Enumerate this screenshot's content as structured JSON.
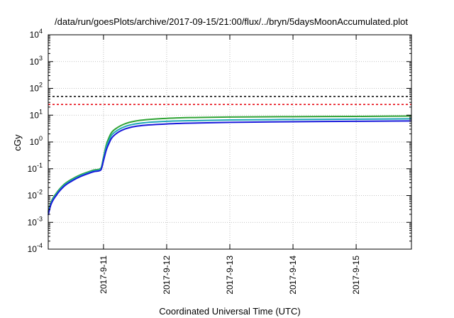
{
  "chart_data": {
    "type": "line",
    "title": "/data/run/goesPlots/archive/2017-09-15/21:00/flux/../bryn/5daysMoonAccumulated.plot",
    "xlabel": "Coordinated Universal Time (UTC)",
    "ylabel": "cGy",
    "xlim": [
      "2017-09-10T03:00",
      "2017-09-15T21:00"
    ],
    "ylim": [
      0.0001,
      10000
    ],
    "yscale": "log",
    "grid": true,
    "x_ticks": [
      "2017-9-11",
      "2017-9-12",
      "2017-9-13",
      "2017-9-14",
      "2017-9-15"
    ],
    "y_ticks": [
      {
        "base": "10",
        "exp": "-4"
      },
      {
        "base": "10",
        "exp": "-3"
      },
      {
        "base": "10",
        "exp": "-2"
      },
      {
        "base": "10",
        "exp": "-1"
      },
      {
        "base": "10",
        "exp": "0"
      },
      {
        "base": "10",
        "exp": "1"
      },
      {
        "base": "10",
        "exp": "2"
      },
      {
        "base": "10",
        "exp": "3"
      },
      {
        "base": "10",
        "exp": "4"
      }
    ],
    "thresholds": [
      {
        "value": 50,
        "color": "#000000",
        "style": "dashed"
      },
      {
        "value": 25,
        "color": "#e8111b",
        "style": "dashed"
      }
    ],
    "series": [
      {
        "color": "#2fa334",
        "x": [
          "2017-09-10T03:00",
          "2017-09-10T04:00",
          "2017-09-10T06:00",
          "2017-09-10T09:00",
          "2017-09-10T12:00",
          "2017-09-10T15:00",
          "2017-09-10T18:00",
          "2017-09-10T21:00",
          "2017-09-10T23:00",
          "2017-09-11T00:00",
          "2017-09-11T01:00",
          "2017-09-11T02:00",
          "2017-09-11T03:00",
          "2017-09-11T05:00",
          "2017-09-11T08:00",
          "2017-09-11T12:00",
          "2017-09-12T00:00",
          "2017-09-12T12:00",
          "2017-09-13T00:00",
          "2017-09-14T00:00",
          "2017-09-15T00:00",
          "2017-09-15T21:00"
        ],
        "y": [
          0.0025,
          0.0055,
          0.012,
          0.026,
          0.041,
          0.058,
          0.075,
          0.092,
          0.105,
          0.27,
          0.75,
          1.4,
          2.2,
          3.3,
          4.7,
          6.0,
          7.6,
          8.2,
          8.5,
          8.8,
          9.0,
          9.3
        ]
      },
      {
        "color": "#1fa8b6",
        "x": [
          "2017-09-10T03:00",
          "2017-09-10T04:00",
          "2017-09-10T06:00",
          "2017-09-10T09:00",
          "2017-09-10T12:00",
          "2017-09-10T15:00",
          "2017-09-10T18:00",
          "2017-09-10T21:00",
          "2017-09-10T23:00",
          "2017-09-11T00:00",
          "2017-09-11T01:00",
          "2017-09-11T02:00",
          "2017-09-11T03:00",
          "2017-09-11T05:00",
          "2017-09-11T08:00",
          "2017-09-11T12:00",
          "2017-09-12T00:00",
          "2017-09-12T12:00",
          "2017-09-13T00:00",
          "2017-09-14T00:00",
          "2017-09-15T00:00",
          "2017-09-15T21:00"
        ],
        "y": [
          0.0022,
          0.005,
          0.011,
          0.024,
          0.038,
          0.054,
          0.07,
          0.086,
          0.098,
          0.24,
          0.62,
          1.1,
          1.75,
          2.6,
          3.7,
          4.7,
          5.9,
          6.3,
          6.6,
          6.9,
          7.1,
          7.3
        ]
      },
      {
        "color": "#1a1adb",
        "x": [
          "2017-09-10T03:00",
          "2017-09-10T04:00",
          "2017-09-10T06:00",
          "2017-09-10T09:00",
          "2017-09-10T12:00",
          "2017-09-10T15:00",
          "2017-09-10T18:00",
          "2017-09-10T21:00",
          "2017-09-10T23:00",
          "2017-09-11T00:00",
          "2017-09-11T01:00",
          "2017-09-11T02:00",
          "2017-09-11T03:00",
          "2017-09-11T05:00",
          "2017-09-11T08:00",
          "2017-09-11T12:00",
          "2017-09-12T00:00",
          "2017-09-12T12:00",
          "2017-09-13T00:00",
          "2017-09-14T00:00",
          "2017-09-15T00:00",
          "2017-09-15T21:00"
        ],
        "y": [
          0.0019,
          0.0045,
          0.01,
          0.022,
          0.035,
          0.05,
          0.065,
          0.08,
          0.09,
          0.2,
          0.48,
          0.85,
          1.35,
          2.1,
          3.0,
          3.8,
          4.7,
          5.1,
          5.4,
          5.7,
          5.9,
          6.1
        ]
      }
    ]
  }
}
